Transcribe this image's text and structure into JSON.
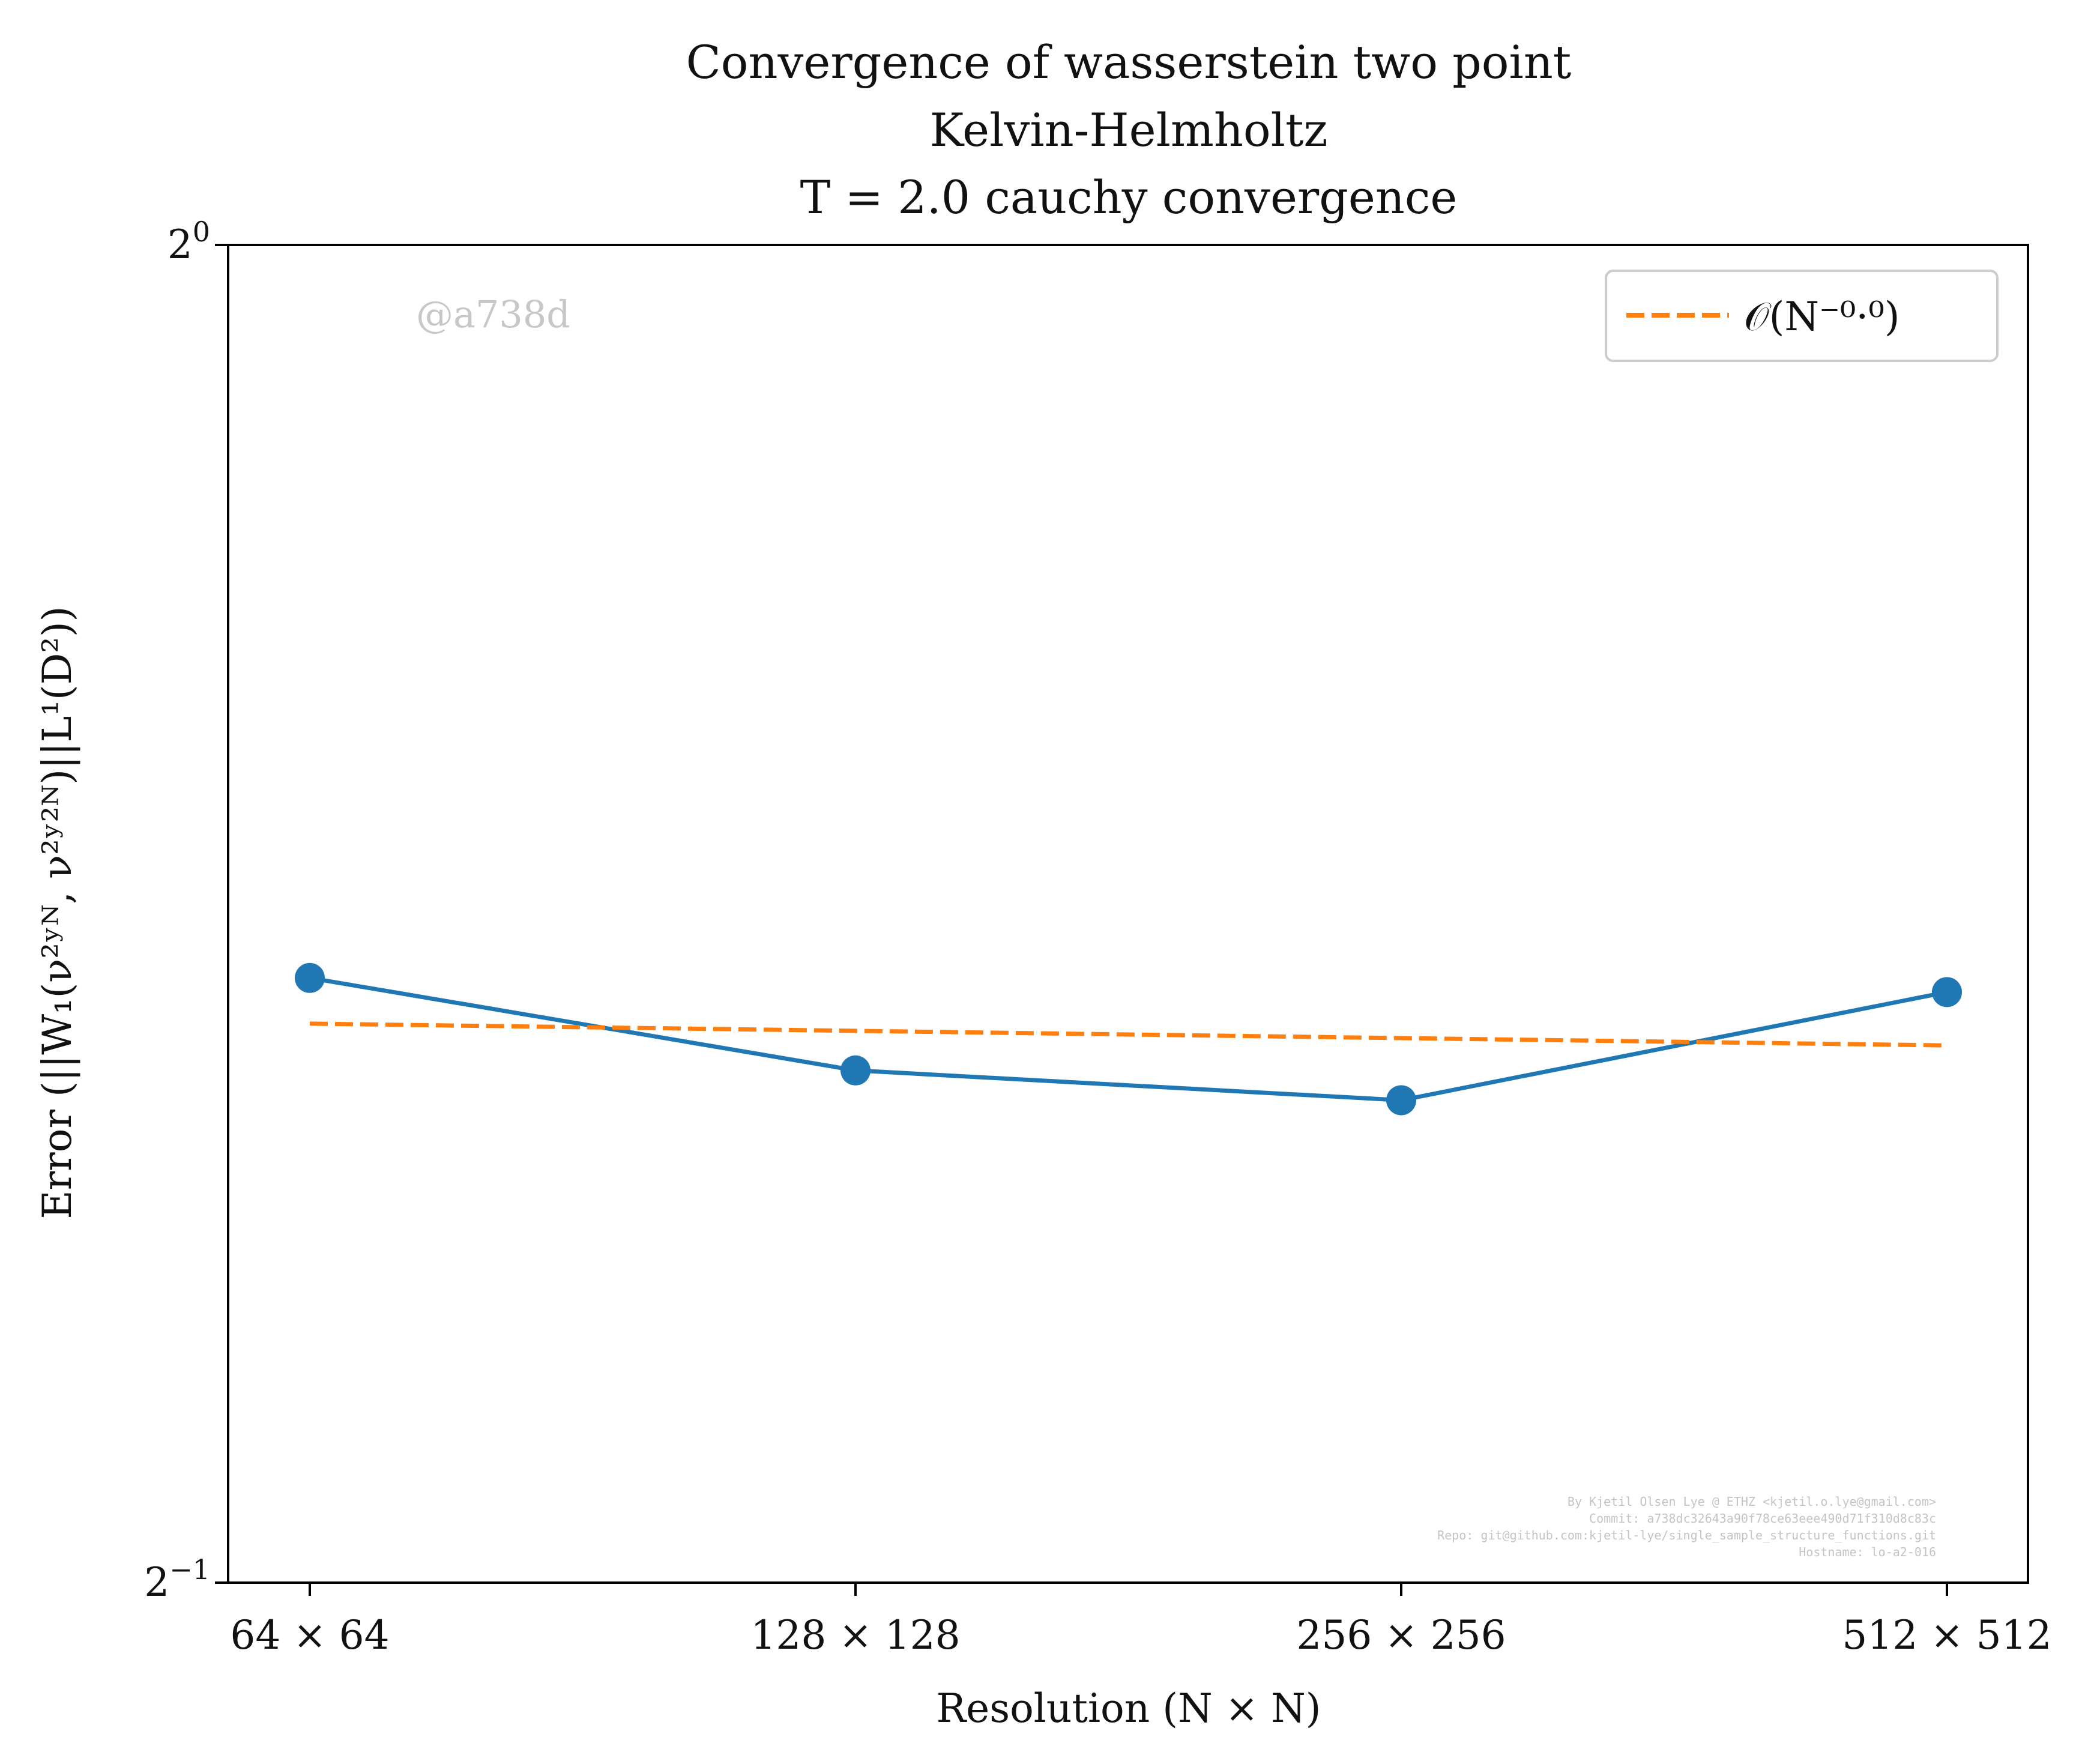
{
  "chart_data": {
    "type": "line",
    "title_lines": [
      "Convergence of wasserstein two point",
      "Kelvin-Helmholtz",
      "T = 2.0 cauchy convergence"
    ],
    "xlabel": "Resolution (N × N)",
    "ylabel": "Error (||W₁(ν²ʸᴺ, ν²ʸ²ᴺ)||L¹(D²))",
    "x_scale": "log2",
    "y_scale": "log2",
    "categories": [
      "64 × 64",
      "128 × 128",
      "256 × 256",
      "512 × 512"
    ],
    "x": [
      64,
      128,
      256,
      512
    ],
    "ylim": [
      0.5,
      1.0
    ],
    "y_ticks": [
      {
        "value": 1.0,
        "base": "2",
        "exp": "0"
      },
      {
        "value": 0.5,
        "base": "2",
        "exp": "−1"
      }
    ],
    "series": [
      {
        "values": [
          0.684,
          0.652,
          0.642,
          0.679
        ],
        "color": "#1f77b4",
        "style": "solid",
        "marker": "circle"
      },
      {
        "name": "𝒪(N⁻⁰·⁰)",
        "values": [
          0.668,
          0.6655,
          0.663,
          0.6605
        ],
        "color": "#ff7f0e",
        "style": "dashed",
        "marker": "none"
      }
    ],
    "legend_position": "top-right",
    "grid": false,
    "watermark": "@a738d",
    "credits": [
      "By Kjetil Olsen Lye @ ETHZ <kjetil.o.lye@gmail.com>",
      "Commit: a738dc32643a90f78ce63eee490d71f310d8c83c",
      "Repo: git@github.com:kjetil-lye/single_sample_structure_functions.git",
      "Hostname: lo-a2-016"
    ]
  }
}
